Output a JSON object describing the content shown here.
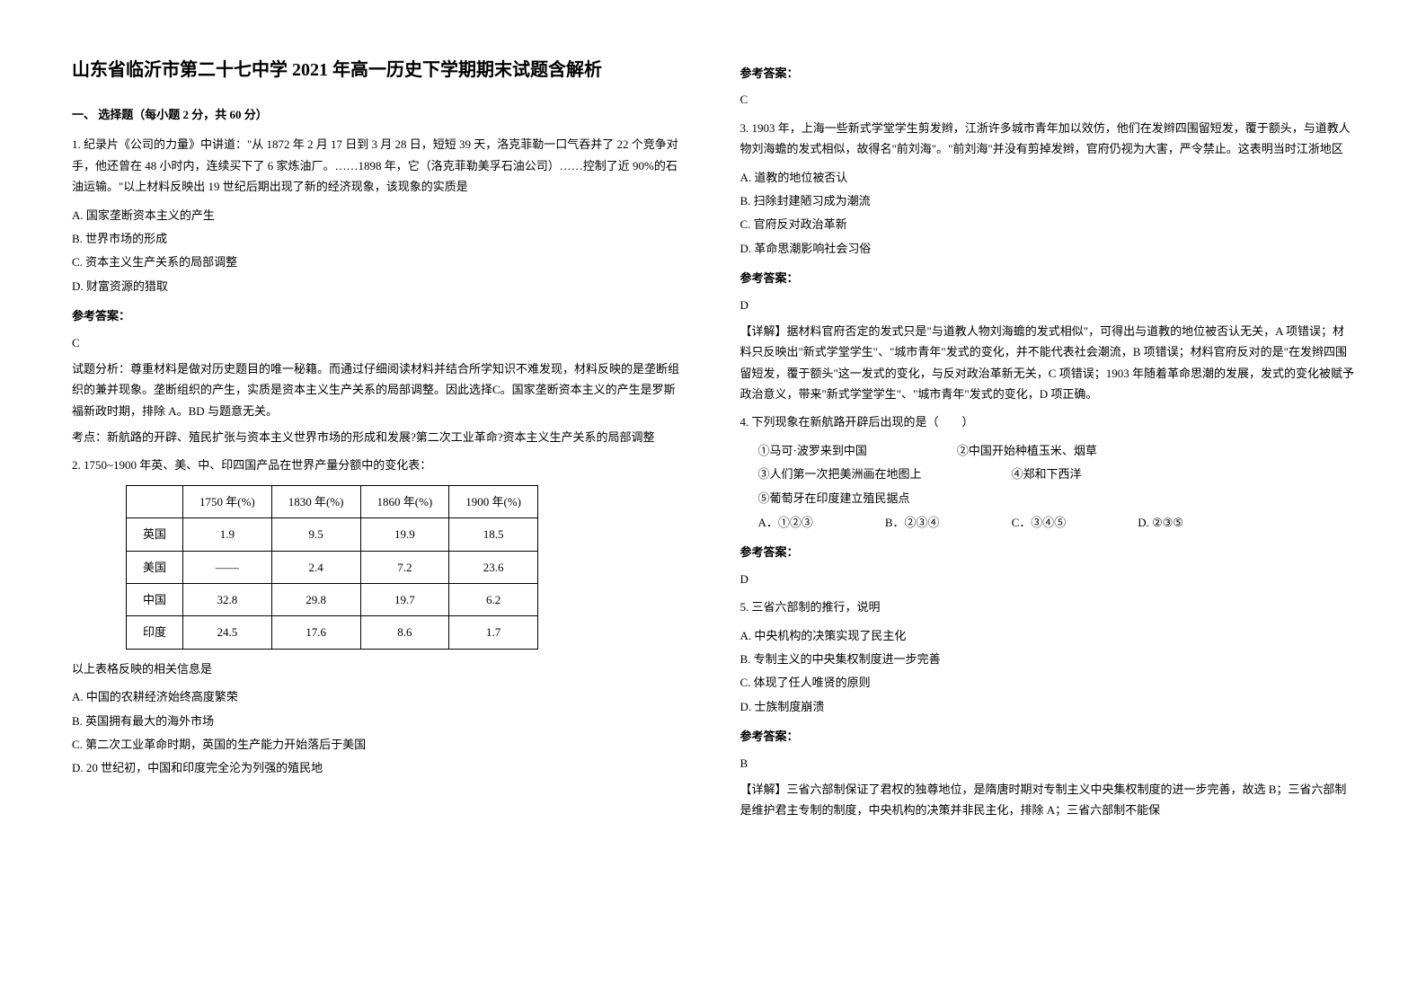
{
  "title": "山东省临沂市第二十七中学 2021 年高一历史下学期期末试题含解析",
  "section1_header": "一、 选择题（每小题 2 分，共 60 分）",
  "q1": {
    "stem": "1. 纪录片《公司的力量》中讲道：\"从 1872 年 2 月 17 日到 3 月 28 日，短短 39 天，洛克菲勒一口气吞并了 22 个竞争对手，他还曾在 48 小时内，连续买下了 6 家炼油厂。……1898 年，它（洛克菲勒美孚石油公司）……控制了近 90%的石油运输。\"以上材料反映出 19 世纪后期出现了新的经济现象，该现象的实质是",
    "optA": "A. 国家垄断资本主义的产生",
    "optB": "B. 世界市场的形成",
    "optC": "C. 资本主义生产关系的局部调整",
    "optD": "D. 财富资源的猎取",
    "answer_label": "参考答案：",
    "answer": "C",
    "analysis1": "试题分析：尊重材料是做对历史题目的唯一秘籍。而通过仔细阅读材料并结合所学知识不难发现，材料反映的是垄断组织的兼并现象。垄断组织的产生，实质是资本主义生产关系的局部调整。因此选择C。国家垄断资本主义的产生是罗斯福新政时期，排除 A。BD 与题意无关。",
    "analysis2": "考点：新航路的开辟、殖民扩张与资本主义世界市场的形成和发展?第二次工业革命?资本主义生产关系的局部调整"
  },
  "q2": {
    "stem": "2. 1750~1900 年英、美、中、印四国产品在世界产量分额中的变化表：",
    "table": {
      "headers": [
        "",
        "1750 年(%)",
        "1830 年(%)",
        "1860 年(%)",
        "1900 年(%)"
      ],
      "rows": [
        [
          "英国",
          "1.9",
          "9.5",
          "19.9",
          "18.5"
        ],
        [
          "美国",
          "——",
          "2.4",
          "7.2",
          "23.6"
        ],
        [
          "中国",
          "32.8",
          "29.8",
          "19.7",
          "6.2"
        ],
        [
          "印度",
          "24.5",
          "17.6",
          "8.6",
          "1.7"
        ]
      ]
    },
    "post_table": "以上表格反映的相关信息是",
    "optA": "A.  中国的农耕经济始终高度繁荣",
    "optB": "B.  英国拥有最大的海外市场",
    "optC": "C.  第二次工业革命时期，英国的生产能力开始落后于美国",
    "optD": "D.  20 世纪初，中国和印度完全沦为列强的殖民地",
    "answer_label": "参考答案：",
    "answer": "C"
  },
  "q3": {
    "stem": "3. 1903 年，上海一些新式学堂学生剪发辫，江浙许多城市青年加以效仿，他们在发辫四围留短发，覆于额头，与道教人物刘海蟾的发式相似，故得名\"前刘海\"。\"前刘海\"并没有剪掉发辫，官府仍视为大害，严令禁止。这表明当时江浙地区",
    "optA": "A. 道教的地位被否认",
    "optB": "B. 扫除封建陋习成为潮流",
    "optC": "C. 官府反对政治革新",
    "optD": "D. 革命思潮影响社会习俗",
    "answer_label": "参考答案：",
    "answer": "D",
    "analysis": "【详解】据材料官府否定的发式只是\"与道教人物刘海蟾的发式相似\"，可得出与道教的地位被否认无关，A 项错误；材料只反映出\"新式学堂学生\"、\"城市青年\"发式的变化，并不能代表社会潮流，B 项错误；材料官府反对的是\"在发辫四围留短发，覆于额头\"这一发式的变化，与反对政治革新无关，C 项错误；1903 年随着革命思潮的发展，发式的变化被赋予政治意义，带来\"新式学堂学生\"、\"城市青年\"发式的变化，D 项正确。"
  },
  "q4": {
    "stem": "4. 下列现象在新航路开辟后出现的是（　　）",
    "item1": "①马可·波罗来到中国",
    "item2": "②中国开始种植玉米、烟草",
    "item3": "③人们第一次把美洲画在地图上",
    "item4": "④郑和下西洋",
    "item5": "⑤葡萄牙在印度建立殖民据点",
    "optA": "A．①②③",
    "optB": "B．②③④",
    "optC": "C．③④⑤",
    "optD": "D. ②③⑤",
    "answer_label": "参考答案：",
    "answer": "D"
  },
  "q5": {
    "stem": "5. 三省六部制的推行，说明",
    "optA": "A. 中央机构的决策实现了民主化",
    "optB": "B. 专制主义的中央集权制度进一步完善",
    "optC": "C. 体现了任人唯贤的原则",
    "optD": "D. 士族制度崩溃",
    "answer_label": "参考答案：",
    "answer": "B",
    "analysis": "【详解】三省六部制保证了君权的独尊地位，是隋唐时期对专制主义中央集权制度的进一步完善，故选 B；三省六部制是维护君主专制的制度，中央机构的决策并非民主化，排除 A；三省六部制不能保"
  }
}
